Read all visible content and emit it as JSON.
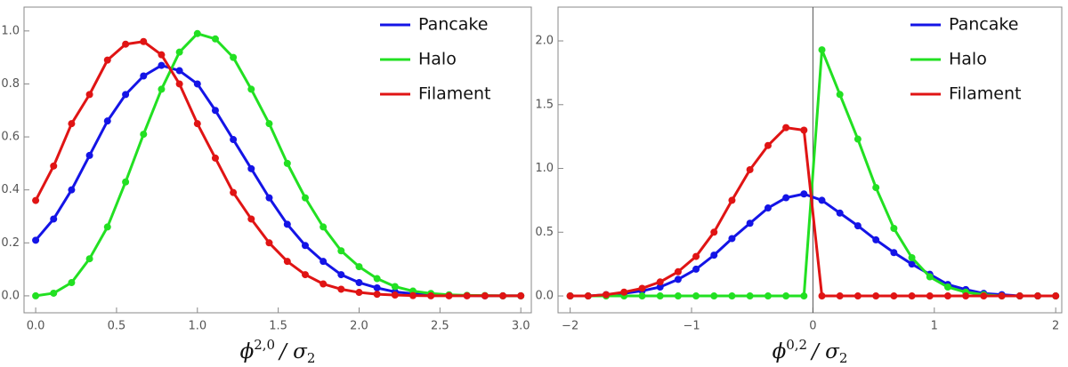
{
  "chart_data": [
    {
      "type": "line",
      "x": [
        0,
        0.111,
        0.222,
        0.333,
        0.444,
        0.556,
        0.667,
        0.778,
        0.889,
        1,
        1.111,
        1.222,
        1.333,
        1.444,
        1.556,
        1.667,
        1.778,
        1.889,
        2,
        2.111,
        2.222,
        2.333,
        2.444,
        2.556,
        2.667,
        2.778,
        2.889,
        3
      ],
      "series": [
        {
          "name": "Pancake",
          "color": "#1414e6",
          "values": [
            0.21,
            0.29,
            0.4,
            0.53,
            0.66,
            0.76,
            0.83,
            0.87,
            0.85,
            0.8,
            0.7,
            0.59,
            0.48,
            0.37,
            0.27,
            0.19,
            0.13,
            0.08,
            0.05,
            0.03,
            0.015,
            0.008,
            0.004,
            0.002,
            0.001,
            0,
            0,
            0
          ]
        },
        {
          "name": "Halo",
          "color": "#22e022",
          "values": [
            0,
            0.01,
            0.05,
            0.14,
            0.26,
            0.43,
            0.61,
            0.78,
            0.92,
            0.99,
            0.97,
            0.9,
            0.78,
            0.65,
            0.5,
            0.37,
            0.26,
            0.17,
            0.11,
            0.065,
            0.035,
            0.018,
            0.009,
            0.004,
            0.002,
            0.001,
            0,
            0
          ]
        },
        {
          "name": "Filament",
          "color": "#e01414",
          "values": [
            0.36,
            0.49,
            0.65,
            0.76,
            0.89,
            0.95,
            0.96,
            0.91,
            0.8,
            0.65,
            0.52,
            0.39,
            0.29,
            0.2,
            0.13,
            0.08,
            0.045,
            0.025,
            0.013,
            0.006,
            0.003,
            0.001,
            0,
            0,
            0,
            0,
            0,
            0
          ]
        }
      ],
      "xlim": [
        -0.072,
        3.065
      ],
      "ylim": [
        -0.064,
        1.09
      ],
      "xticks": [
        {
          "value": 0,
          "label": "0.0"
        },
        0.5,
        {
          "value": 1,
          "label": "1.0"
        },
        1.5,
        {
          "value": 2,
          "label": "2.0"
        },
        2.5,
        {
          "value": 3,
          "label": "3.0"
        }
      ],
      "yticks": [
        {
          "value": 0,
          "label": "0.0"
        },
        0.2,
        0.4,
        0.6,
        0.8,
        {
          "value": 1,
          "label": "1.0"
        }
      ],
      "xlabel": {
        "symbol": "ϕ",
        "superscript": "2,0",
        "divider": "/ σ",
        "subscript": "2"
      },
      "legend": "upper right"
    },
    {
      "type": "line",
      "x": [
        -2,
        -1.852,
        -1.704,
        -1.556,
        -1.407,
        -1.259,
        -1.111,
        -0.963,
        -0.815,
        -0.667,
        -0.519,
        -0.37,
        -0.222,
        -0.074,
        0.074,
        0.222,
        0.37,
        0.519,
        0.667,
        0.815,
        0.963,
        1.111,
        1.259,
        1.407,
        1.556,
        1.704,
        1.852,
        2
      ],
      "series": [
        {
          "name": "Pancake",
          "color": "#1414e6",
          "values": [
            0,
            0,
            0.01,
            0.02,
            0.04,
            0.07,
            0.13,
            0.21,
            0.32,
            0.45,
            0.57,
            0.69,
            0.77,
            0.8,
            0.75,
            0.65,
            0.55,
            0.44,
            0.34,
            0.25,
            0.17,
            0.09,
            0.05,
            0.02,
            0.01,
            0,
            0,
            0
          ]
        },
        {
          "name": "Halo",
          "color": "#22e022",
          "values": [
            0,
            0,
            0,
            0,
            0,
            0,
            0,
            0,
            0,
            0,
            0,
            0,
            0,
            0,
            1.93,
            1.58,
            1.23,
            0.85,
            0.53,
            0.3,
            0.15,
            0.07,
            0.03,
            0.01,
            0,
            0,
            0,
            0
          ]
        },
        {
          "name": "Filament",
          "color": "#e01414",
          "values": [
            0,
            0,
            0.01,
            0.03,
            0.06,
            0.11,
            0.19,
            0.31,
            0.5,
            0.75,
            0.99,
            1.18,
            1.32,
            1.3,
            0,
            0,
            0,
            0,
            0,
            0,
            0,
            0,
            0,
            0,
            0,
            0,
            0,
            0
          ]
        }
      ],
      "xlim": [
        -2.1,
        2.05
      ],
      "ylim": [
        -0.132,
        2.265
      ],
      "xticks": [
        {
          "value": -2,
          "label": "−2"
        },
        {
          "value": -1,
          "label": "−1"
        },
        0,
        1,
        2
      ],
      "yticks": [
        {
          "value": 0,
          "label": "0.0"
        },
        0.5,
        {
          "value": 1,
          "label": "1.0"
        },
        1.5,
        {
          "value": 2,
          "label": "2.0"
        }
      ],
      "vline": 0,
      "xlabel": {
        "symbol": "ϕ",
        "superscript": "0,2",
        "divider": "/ σ",
        "subscript": "2"
      },
      "legend": "upper right"
    }
  ]
}
